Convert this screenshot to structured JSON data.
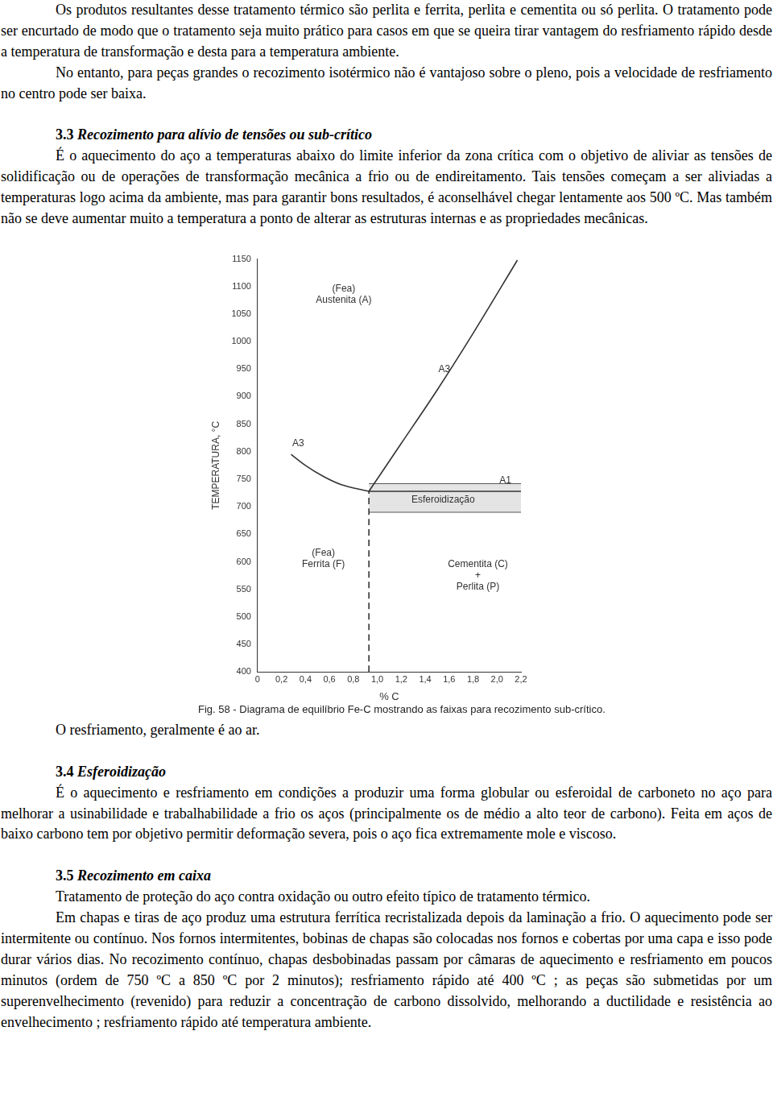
{
  "blocks_before": [
    {
      "kind": "p",
      "text": "Os produtos resultantes desse tratamento térmico são perlita e ferrita, perlita e cementita ou só perlita. O tratamento pode ser encurtado de modo que o tratamento seja muito prático para casos em que se queira tirar vantagem do resfriamento rápido desde a temperatura de transformação e desta para a temperatura ambiente."
    },
    {
      "kind": "p",
      "text": "No entanto, para peças grandes o recozimento isotérmico não é vantajoso sobre o pleno, pois a velocidade de resfriamento no centro pode ser baixa."
    },
    {
      "kind": "h",
      "number": "3.3",
      "text": "Recozimento para alívio de tensões ou sub-crítico"
    },
    {
      "kind": "p",
      "text": "É o aquecimento do aço a temperaturas abaixo do limite inferior da zona crítica com o objetivo de aliviar as tensões de solidificação ou de operações de transformação mecânica a frio ou de endireitamento. Tais tensões começam a ser aliviadas a temperaturas logo acima da ambiente, mas para garantir bons resultados, é aconselhável chegar lentamente aos 500 ºC. Mas também não se deve aumentar muito a temperatura a ponto de alterar as estruturas internas e as propriedades mecânicas."
    }
  ],
  "chart_data": {
    "type": "line",
    "x_label": "% C",
    "y_label": "TEMPERATURA, °C",
    "xlim": [
      0,
      2.2
    ],
    "xticks": [
      0,
      {
        "value": 0.2,
        "label": "0,2"
      },
      {
        "value": 0.4,
        "label": "0,4"
      },
      {
        "value": 0.6,
        "label": "0,6"
      },
      {
        "value": 0.8,
        "label": "0,8"
      },
      {
        "value": 1.0,
        "label": "1,0"
      },
      {
        "value": 1.2,
        "label": "1,2"
      },
      {
        "value": 1.4,
        "label": "1,4"
      },
      {
        "value": 1.6,
        "label": "1,6"
      },
      {
        "value": 1.8,
        "label": "1,8"
      },
      {
        "value": 2.0,
        "label": "2,0"
      },
      {
        "value": 2.2,
        "label": "2,2"
      }
    ],
    "ylim": [
      400,
      1150
    ],
    "yticks": [
      400,
      450,
      500,
      550,
      600,
      650,
      700,
      750,
      800,
      850,
      900,
      950,
      1000,
      1050,
      1100,
      1150
    ],
    "grid": false,
    "series": [
      {
        "name": "A3",
        "color": "#333333",
        "line_style": "solid",
        "x": [
          0.28,
          0.4,
          0.55,
          0.7,
          0.93
        ],
        "values": [
          795,
          775,
          755,
          740,
          728
        ]
      },
      {
        "name": "A3",
        "color": "#333333",
        "line_style": "solid",
        "x": [
          0.93,
          1.2,
          1.5,
          1.8,
          2.17
        ],
        "values": [
          728,
          815,
          912,
          1015,
          1148
        ]
      },
      {
        "name": "A1",
        "color": "#333333",
        "line_style": "solid",
        "x": [
          0.93,
          2.2
        ],
        "values": [
          728,
          728
        ]
      },
      {
        "color": "#333333",
        "line_style": "dashed",
        "x": [
          0.93,
          0.93
        ],
        "values": [
          400,
          728
        ]
      }
    ],
    "bands": [
      {
        "name": "Esferoidização",
        "color": "#e4e4e4",
        "x": [
          0.93,
          2.2
        ],
        "y": [
          690,
          742
        ]
      }
    ],
    "annotations": [
      "(Fea)\nAustenita (A)",
      "(Fea)\nFerrita (F)",
      "Cementita (C)\n+\nPerlita (P)"
    ]
  },
  "caption": "Fig. 58 - Diagrama de equilíbrio Fe-C mostrando as faixas para recozimento sub-crítico.",
  "blocks_after": [
    {
      "kind": "p",
      "text": "O resfriamento, geralmente é ao ar."
    },
    {
      "kind": "h",
      "number": "3.4",
      "text": "Esferoidização"
    },
    {
      "kind": "p",
      "text": "É o aquecimento e resfriamento em condições a produzir uma forma globular ou esferoidal de carboneto no aço para melhorar a usinabilidade e trabalhabilidade a frio os aços (principalmente os de médio a alto teor de carbono). Feita em aços de baixo carbono tem por objetivo permitir deformação severa, pois o aço fica extremamente mole e viscoso."
    },
    {
      "kind": "h",
      "number": "3.5",
      "text": "Recozimento em caixa"
    },
    {
      "kind": "p",
      "text": "Tratamento de proteção do aço contra oxidação ou outro efeito típico de tratamento térmico."
    },
    {
      "kind": "p",
      "text": "Em chapas e tiras de aço produz uma estrutura ferrítica recristalizada depois da laminação a frio. O aquecimento pode ser intermitente ou contínuo. Nos fornos intermitentes, bobinas de chapas são colocadas nos fornos e cobertas por uma capa e isso pode durar vários dias. No recozimento contínuo, chapas desbobinadas passam por câmaras de aquecimento e resfriamento em poucos minutos (ordem de 750 ºC a 850 ºC por 2 minutos); resfriamento rápido até 400 ºC ; as peças são submetidas por um superenvelhecimento (revenido) para reduzir a concentração de carbono dissolvido, melhorando a ductilidade e resistência ao envelhecimento ; resfriamento rápido até temperatura ambiente."
    }
  ]
}
